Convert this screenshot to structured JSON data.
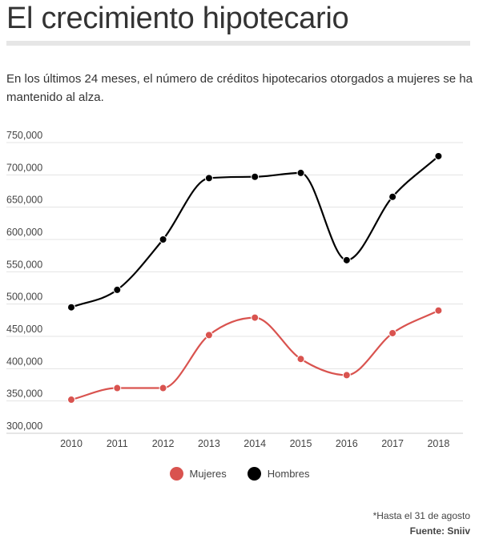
{
  "header": {
    "title": "El crecimiento hipotecario",
    "subtitle": "En los últimos 24 meses, el número de créditos hipotecarios otorgados a mujeres se ha mantenido al alza."
  },
  "footer": {
    "note": "*Hasta el 31 de agosto",
    "source": "Fuente: Sniiv"
  },
  "chart_data": {
    "type": "line",
    "x": [
      "2010",
      "2011",
      "2012",
      "2013",
      "2014",
      "2015",
      "2016",
      "2017",
      "2018"
    ],
    "series": [
      {
        "name": "Mujeres",
        "color": "#d9534f",
        "values": [
          352000,
          370000,
          370000,
          452000,
          479000,
          415000,
          390000,
          455000,
          490000
        ]
      },
      {
        "name": "Hombres",
        "color": "#000000",
        "values": [
          495000,
          522000,
          600000,
          695000,
          697000,
          703000,
          568000,
          666000,
          729000
        ]
      }
    ],
    "yticks": [
      "300,000",
      "350,000",
      "400,000",
      "450,000",
      "500,000",
      "550,000",
      "600,000",
      "650,000",
      "700,000",
      "750,000"
    ],
    "ylim": [
      300000,
      750000
    ],
    "grid": true,
    "smooth": true,
    "legend": "bottom-center"
  }
}
